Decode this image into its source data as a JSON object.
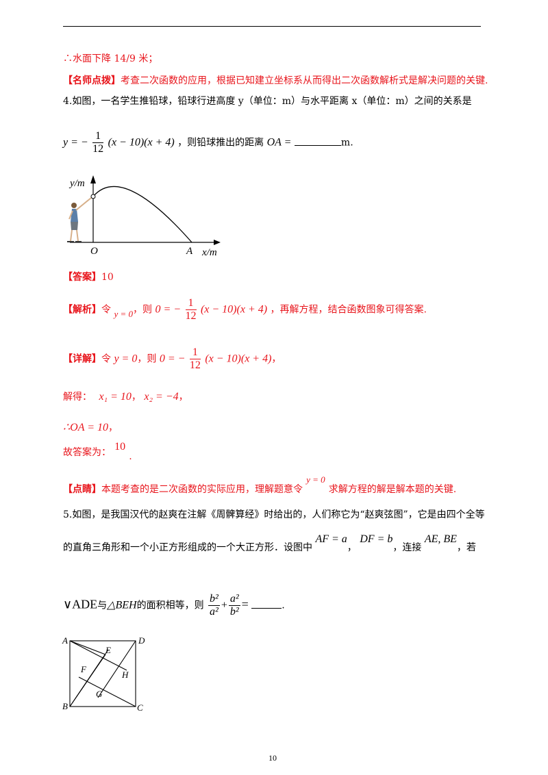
{
  "page_number": "10",
  "prev_conclusion": "∴水面下降 14/9 米；",
  "tip_prev": {
    "tag": "【名师点拨】",
    "text": "考查二次函数的应用，根据已知建立坐标系从而得出二次函数解析式是解决问题的关键."
  },
  "q4": {
    "stem": "4.如图，一名学生推铅球，铅球行进高度 y（单位：m）与水平距离 x（单位：m）之间的关系是",
    "formula_prefix": "y = −",
    "frac_num": "1",
    "frac_den": "12",
    "formula_suffix": "(x − 10)(x + 4)",
    "after_formula": "，则铅球推出的距离",
    "oa_eq": "OA =",
    "unit": "m.",
    "figure": {
      "y_label": "y/m",
      "x_label": "x/m",
      "origin_label": "O",
      "point_label": "A"
    },
    "answer_tag": "【答案】",
    "answer_value": "10",
    "analysis_tag": "【解析】",
    "analysis_let": "令",
    "analysis_y0": "y = 0",
    "analysis_then": "，则",
    "analysis_eq_lhs": "0 = −",
    "analysis_eq_rhs": "(x − 10)(x + 4)",
    "analysis_rest": "，再解方程，结合函数图象可得答案.",
    "detail_tag": "【详解】",
    "detail_let": "令",
    "detail_y0": "y = 0",
    "detail_then": "，则",
    "detail_comma": "，",
    "solve_label": "解得：",
    "x1": "x₁ = 10",
    "x2": "x₂ = −4",
    "sep": "，",
    "oa_line": "∴OA = 10",
    "oa_suffix": "，",
    "final_label": "故答案为：",
    "final_value": "10",
    "final_dot": ".",
    "comment_tag": "【点睛】",
    "comment_a": "本题考查的是二次函数的实际应用，理解题意令",
    "comment_y0": "y = 0",
    "comment_b": "求解方程的解是解本题的关键."
  },
  "q5": {
    "line1": "5.如图，是我国汉代的赵爽在注解《周髀算经》时给出的，人们称它为“赵爽弦图”，它是由四个全等",
    "line2_a": "的直角三角形和一个小正方形组成的一个大正方形．设图中",
    "af_eq": "AF = a",
    "comma1": "，",
    "df_eq": "DF = b",
    "connect": "，连接",
    "ae_be": "AE, BE",
    "if_text": "，若",
    "line3_tri1": "∨ADE",
    "line3_and": "与",
    "line3_tri2": "△BEH",
    "line3_mid": "的面积相等，则",
    "b2": "b²",
    "a2": "a²",
    "plus": "+",
    "eq": "=",
    "end": ".",
    "figure_labels": {
      "A": "A",
      "B": "B",
      "C": "C",
      "D": "D",
      "E": "E",
      "F": "F",
      "G": "G",
      "H": "H"
    }
  },
  "colors": {
    "accent_red": "#e8141b",
    "text": "#000000"
  }
}
